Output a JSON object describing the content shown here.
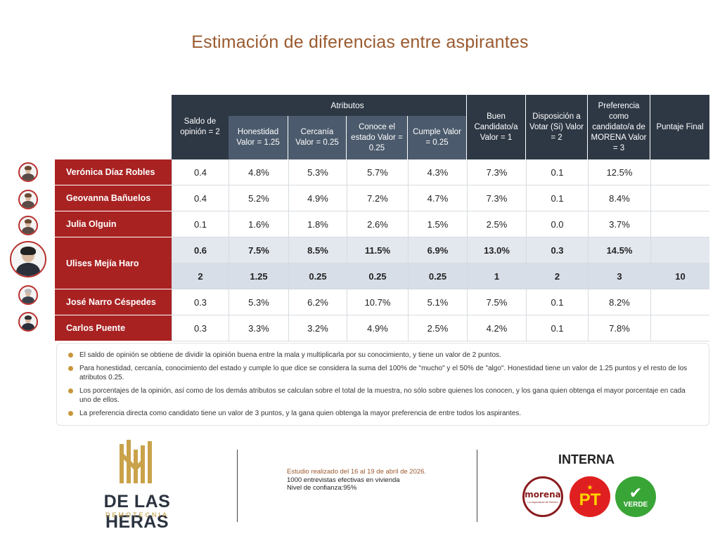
{
  "title": "Estimación de diferencias entre aspirantes",
  "table": {
    "headers": {
      "saldo": "Saldo de opinión = 2",
      "atributos": "Atributos",
      "honestidad": "Honestidad Valor = 1.25",
      "cercania": "Cercanía Valor = 0.25",
      "conoce": "Conoce el estado Valor = 0.25",
      "cumple": "Cumple Valor = 0.25",
      "buen": "Buen Candidato/a Valor = 1",
      "disposicion": "Disposición a Votar (Si) Valor = 2",
      "preferencia": "Preferencia como candidato/a de MORENA Valor = 3",
      "puntaje": "Puntaje Final"
    },
    "rows": [
      {
        "name": "Verónica Díaz Robles",
        "saldo": "0.4",
        "honestidad": "4.8%",
        "cercania": "5.3%",
        "conoce": "5.7%",
        "cumple": "4.3%",
        "buen": "7.3%",
        "disposicion": "0.1",
        "preferencia": "12.5%",
        "puntaje": ""
      },
      {
        "name": "Geovanna Bañuelos",
        "saldo": "0.4",
        "honestidad": "5.2%",
        "cercania": "4.9%",
        "conoce": "7.2%",
        "cumple": "4.7%",
        "buen": "7.3%",
        "disposicion": "0.1",
        "preferencia": "8.4%",
        "puntaje": ""
      },
      {
        "name": "Julia Olguin",
        "saldo": "0.1",
        "honestidad": "1.6%",
        "cercania": "1.8%",
        "conoce": "2.6%",
        "cumple": "1.5%",
        "buen": "2.5%",
        "disposicion": "0.0",
        "preferencia": "3.7%",
        "puntaje": ""
      },
      {
        "name": "Ulises Mejía Haro",
        "saldo": "0.6",
        "honestidad": "7.5%",
        "cercania": "8.5%",
        "conoce": "11.5%",
        "cumple": "6.9%",
        "buen": "13.0%",
        "disposicion": "0.3",
        "preferencia": "14.5%",
        "puntaje": ""
      },
      {
        "name": "",
        "saldo": "2",
        "honestidad": "1.25",
        "cercania": "0.25",
        "conoce": "0.25",
        "cumple": "0.25",
        "buen": "1",
        "disposicion": "2",
        "preferencia": "3",
        "puntaje": "10"
      },
      {
        "name": "José Narro Céspedes",
        "saldo": "0.3",
        "honestidad": "5.3%",
        "cercania": "6.2%",
        "conoce": "10.7%",
        "cumple": "5.1%",
        "buen": "7.5%",
        "disposicion": "0.1",
        "preferencia": "8.2%",
        "puntaje": ""
      },
      {
        "name": "Carlos Puente",
        "saldo": "0.3",
        "honestidad": "3.3%",
        "cercania": "3.2%",
        "conoce": "4.9%",
        "cumple": "2.5%",
        "buen": "4.2%",
        "disposicion": "0.1",
        "preferencia": "7.8%",
        "puntaje": ""
      }
    ]
  },
  "notes": [
    "El saldo de opinión se obtiene de dividir la opinión buena entre la mala y multiplicarla por su conocimiento, y tiene un valor de 2 puntos.",
    "Para honestidad, cercanía, conocimiento del estado y cumple lo que dice se considera la suma del 100% de \"mucho\" y el 50% de \"algo\". Honestidad tiene un valor de 1.25 puntos y el resto de los atributos 0.25.",
    "Los porcentajes de la opinión, así como de los demás atributos se calculan sobre el total de la muestra, no sólo sobre quienes los conocen, y los gana quien obtenga el mayor porcentaje en cada uno de ellos.",
    "La preferencia directa como candidato tiene un valor de 3 puntos, y la gana quien obtenga la mayor preferencia de entre todos los aspirantes."
  ],
  "footer": {
    "logo_name": "DE LAS HERAS",
    "logo_sub": "DEMOTECNIA",
    "study_line1": "Estudio realizado del 16 al 19 de abril de 2026.",
    "study_line2": "1000 entrevistas efectivas en vivienda",
    "study_line3": "Nivel de confianza:95%",
    "interna": "INTERNA",
    "morena": "morena",
    "morena_sub": "La esperanza de México",
    "pt": "PT",
    "verde": "VERDE"
  },
  "colors": {
    "header": "#2e3845",
    "name_bg": "#a92222",
    "title": "#9a5a2f",
    "gold": "#c8963a"
  }
}
